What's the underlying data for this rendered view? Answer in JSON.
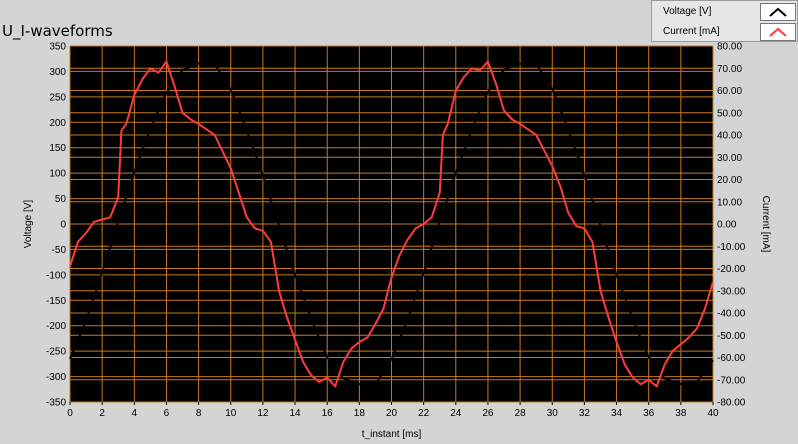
{
  "window": {
    "title": "U_I-waveforms"
  },
  "legend": {
    "items": [
      {
        "label": "Voltage [V]",
        "color": "#000000"
      },
      {
        "label": "Current [mA]",
        "color": "#ff3b3b"
      }
    ]
  },
  "colors": {
    "plot_background": "#000000",
    "grid": "#c87a1e",
    "voltage": "#000000",
    "current": "#ff3b3b"
  },
  "chart_data": {
    "type": "line",
    "title": "U_I-waveforms",
    "xlabel": "t_instant [ms]",
    "ylabel": "Voltage [V]",
    "y2label": "Current [mA]",
    "xlim": [
      0,
      40
    ],
    "ylim": [
      -350,
      350
    ],
    "y2lim": [
      -80,
      80
    ],
    "grid": true,
    "legend_position": "top-right",
    "x_ticks": [
      "0",
      "2",
      "4",
      "6",
      "8",
      "10",
      "12",
      "14",
      "16",
      "18",
      "20",
      "22",
      "24",
      "26",
      "28",
      "30",
      "32",
      "34",
      "36",
      "38",
      "40"
    ],
    "y_ticks": [
      "350",
      "300",
      "250",
      "200",
      "150",
      "100",
      "50",
      "0",
      "-50",
      "-100",
      "-150",
      "-200",
      "-250",
      "-300",
      "-350"
    ],
    "y2_ticks": [
      "80.00",
      "70.00",
      "60.00",
      "50.00",
      "40.00",
      "30.00",
      "20.00",
      "10.00",
      "0.00",
      "-10.00",
      "-20.00",
      "-30.00",
      "-40.00",
      "-50.00",
      "-60.00",
      "-70.00",
      "-80.00"
    ],
    "series": [
      {
        "name": "Voltage [V]",
        "axis": "left",
        "x": [
          0,
          1,
          2,
          3,
          4,
          5,
          6,
          7,
          8,
          9,
          10,
          11,
          12,
          13,
          14,
          15,
          16,
          17,
          18,
          19,
          20,
          21,
          22,
          23,
          24,
          25,
          26,
          27,
          28,
          29,
          30,
          31,
          32,
          33,
          34,
          35,
          36,
          37,
          38,
          39,
          40
        ],
        "y": [
          -265,
          -190,
          -95,
          5,
          102,
          188,
          258,
          303,
          316,
          315,
          264,
          184,
          96,
          -4,
          -100,
          -186,
          -262,
          -304,
          -315,
          -315,
          -266,
          -188,
          -96,
          4,
          100,
          186,
          260,
          304,
          315,
          315,
          265,
          186,
          96,
          -4,
          -100,
          -186,
          -262,
          -304,
          -315,
          -310,
          -268
        ]
      },
      {
        "name": "Current [mA]",
        "axis": "right",
        "x": [
          0,
          0.5,
          1,
          1.5,
          2,
          2.5,
          3,
          3.2,
          3.5,
          4,
          4.5,
          5,
          5.5,
          6,
          6.5,
          7,
          7.5,
          8,
          9,
          10,
          10.5,
          11,
          11.5,
          12,
          12.5,
          13,
          13.5,
          14,
          14.5,
          15,
          15.5,
          16,
          16.5,
          17,
          17.5,
          18,
          18.5,
          19,
          19.5,
          20,
          20.5,
          21,
          21.5,
          22,
          22.5,
          23,
          23.2,
          23.5,
          24,
          24.5,
          25,
          25.5,
          26,
          26.5,
          27,
          27.5,
          28,
          29,
          30,
          30.5,
          31,
          31.5,
          32,
          32.5,
          33,
          33.5,
          34,
          34.5,
          35,
          35.5,
          36,
          36.5,
          37,
          37.5,
          38,
          38.5,
          39,
          39.5,
          40
        ],
        "y": [
          -19,
          -8,
          -4,
          1,
          2,
          3,
          12,
          42,
          45,
          58,
          65,
          70,
          68,
          73,
          62,
          50,
          47,
          45,
          40,
          25,
          14,
          3,
          -2,
          -3,
          -8,
          -30,
          -42,
          -52,
          -62,
          -68,
          -71,
          -69,
          -73,
          -62,
          -56,
          -53,
          -51,
          -45,
          -38,
          -24,
          -14,
          -7,
          -2,
          0,
          3,
          14,
          40,
          45,
          60,
          66,
          70,
          69,
          73,
          63,
          51,
          47,
          45,
          40,
          26,
          17,
          5,
          -1,
          -2,
          -8,
          -30,
          -42,
          -53,
          -63,
          -69,
          -72,
          -70,
          -73,
          -63,
          -57,
          -54,
          -51,
          -47,
          -38,
          -26
        ]
      }
    ]
  }
}
